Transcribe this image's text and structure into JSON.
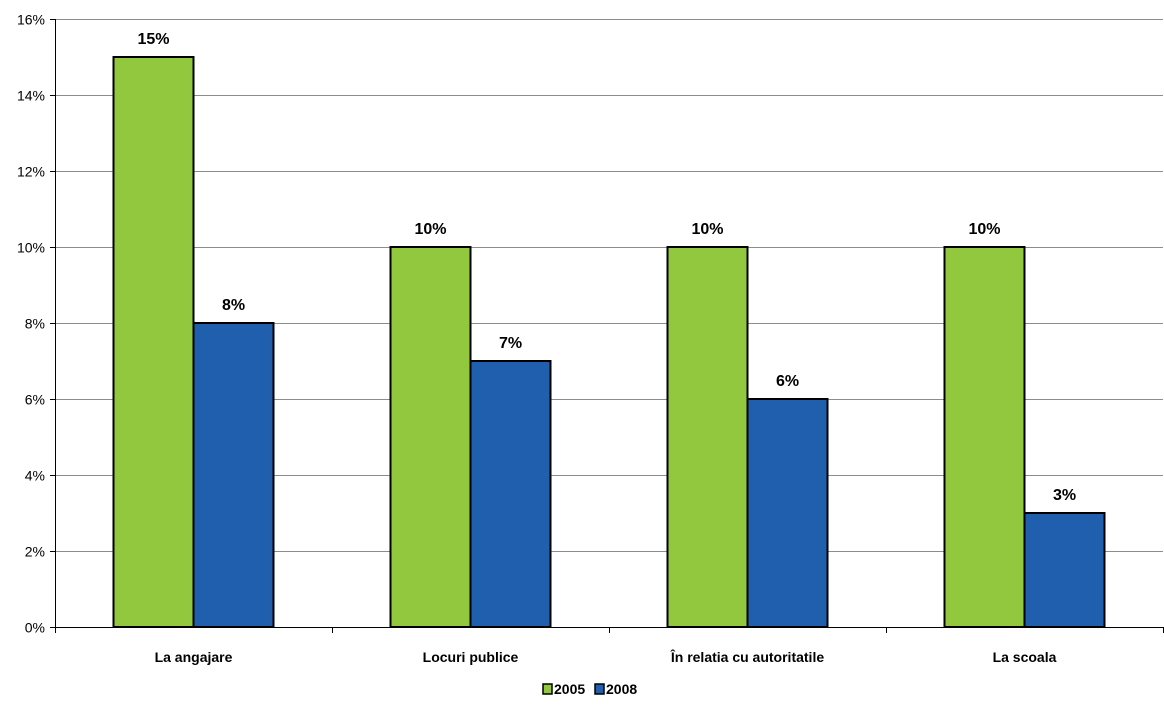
{
  "chart_data": {
    "type": "bar",
    "categories": [
      "La angajare",
      "Locuri publice",
      "În relatia cu autoritatile",
      "La scoala"
    ],
    "series": [
      {
        "name": "2005",
        "color": "#92c83e",
        "values": [
          15,
          10,
          10,
          10
        ],
        "labels": [
          "15%",
          "10%",
          "10%",
          "10%"
        ]
      },
      {
        "name": "2008",
        "color": "#1f5fad",
        "values": [
          8,
          7,
          6,
          3
        ],
        "labels": [
          "8%",
          "7%",
          "6%",
          "3%"
        ]
      }
    ],
    "ylim": [
      0,
      16
    ],
    "yticks": [
      0,
      2,
      4,
      6,
      8,
      10,
      12,
      14,
      16
    ],
    "ytick_labels": [
      "0%",
      "2%",
      "4%",
      "6%",
      "8%",
      "10%",
      "12%",
      "14%",
      "16%"
    ],
    "grid": true,
    "legend": "bottom-center",
    "title": "",
    "xlabel": "",
    "ylabel": ""
  }
}
